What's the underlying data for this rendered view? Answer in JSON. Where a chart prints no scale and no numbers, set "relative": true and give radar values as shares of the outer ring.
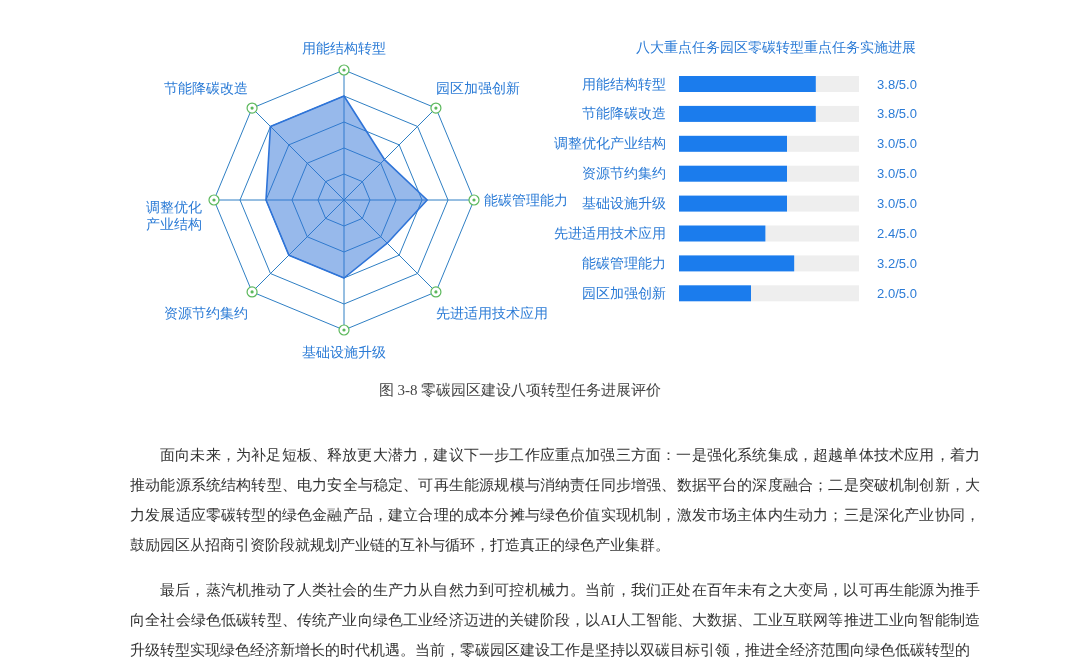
{
  "chart_data": [
    {
      "type": "radar",
      "relative": true,
      "grid": true,
      "categories": [
        "用能结构转型",
        "园区加强创新",
        "能碳管理能力",
        "先进适用技术应用",
        "基础设施升级",
        "资源节约集约",
        "调整优化产业结构",
        "节能降碳改造"
      ],
      "series": [
        {
          "color": "#2f74d8",
          "values": [
            0.8,
            0.44,
            0.64,
            0.47,
            0.6,
            0.6,
            0.6,
            0.8
          ]
        }
      ]
    },
    {
      "type": "bar",
      "orientation": "horizontal",
      "title": "八大重点任务园区零碳转型重点任务实施进展",
      "categories": [
        "用能结构转型",
        "节能降碳改造",
        "调整优化产业结构",
        "资源节约集约",
        "基础设施升级",
        "先进适用技术应用",
        "能碳管理能力",
        "园区加强创新"
      ],
      "values": [
        3.8,
        3.8,
        3.0,
        3.0,
        3.0,
        2.4,
        3.2,
        2.0
      ],
      "value_labels": [
        "3.8/5.0",
        "3.8/5.0",
        "3.0/5.0",
        "3.0/5.0",
        "3.0/5.0",
        "2.4/5.0",
        "3.2/5.0",
        "2.0/5.0"
      ],
      "color": "#1b7ced",
      "xlim": [
        0,
        5
      ],
      "tick_labels": "y"
    },
    {
      "type": "other",
      "annotations": [
        "图 3-8 零碳园区建设八项转型任务进展评价",
        "面向未来，为补足短板、释放更大潜力，建议下一步工作应重点加强三方面：一是强化系统集成，超越单体技术应用，着力推动能源系统结构转型、电力安全与稳定、可再生能源规模与消纳责任同步增强、数据平台的深度融合；二是突破机制创新，大力发展适应零碳转型的绿色金融产品，建立合理的成本分摊与绿色价值实现机制，激发市场主体内生动力；三是深化产业协同，鼓励园区从招商引资阶段就规划产业链的互补与循环，打造真正的绿色产业集群。",
        "最后，蒸汽机推动了人类社会的生产力从自然力到可控机械力。当前，我们正处在百年未有之大变局，以可再生能源为推手向全社会绿色低碳转型、传统产业向绿色工业经济迈进的关键阶段，以AI人工智能、大数据、工业互联网等推进工业向智能制造升级转型实现绿色经济新增长的时代机遇。当前，零碳园区建设工作是坚持以双碳目标引领，推进全经济范围向绿色低碳转型的"
      ]
    }
  ]
}
